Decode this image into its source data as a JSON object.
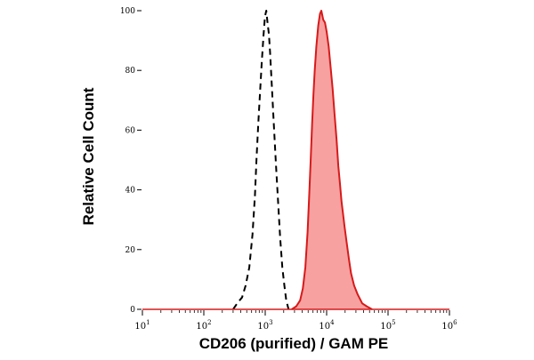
{
  "chart_data": {
    "type": "area",
    "xlabel": "CD206 (purified) / GAM PE",
    "ylabel": "Relative Cell Count",
    "x_scale": "log",
    "xlim": [
      10,
      1000000
    ],
    "ylim": [
      0,
      100
    ],
    "x_ticks": [
      {
        "value": 10,
        "base": "10",
        "exp": "1"
      },
      {
        "value": 100,
        "base": "10",
        "exp": "2"
      },
      {
        "value": 1000,
        "base": "10",
        "exp": "3"
      },
      {
        "value": 10000,
        "base": "10",
        "exp": "4"
      },
      {
        "value": 100000,
        "base": "10",
        "exp": "5"
      },
      {
        "value": 1000000,
        "base": "10",
        "exp": "6"
      }
    ],
    "y_ticks": [
      0,
      20,
      40,
      60,
      80,
      100
    ],
    "grid": false,
    "series": [
      {
        "style": "dashed-line",
        "color": "#000000",
        "points": [
          [
            300,
            0
          ],
          [
            350,
            2
          ],
          [
            420,
            4
          ],
          [
            480,
            8
          ],
          [
            550,
            14
          ],
          [
            620,
            25
          ],
          [
            680,
            38
          ],
          [
            720,
            50
          ],
          [
            770,
            62
          ],
          [
            820,
            72
          ],
          [
            880,
            83
          ],
          [
            940,
            92
          ],
          [
            990,
            98
          ],
          [
            1040,
            100
          ],
          [
            1090,
            96
          ],
          [
            1150,
            92
          ],
          [
            1200,
            86
          ],
          [
            1280,
            75
          ],
          [
            1380,
            62
          ],
          [
            1500,
            48
          ],
          [
            1620,
            36
          ],
          [
            1750,
            24
          ],
          [
            1900,
            14
          ],
          [
            2050,
            8
          ],
          [
            2200,
            3
          ],
          [
            2400,
            0
          ]
        ]
      },
      {
        "style": "filled",
        "color": "#d71a1a",
        "fill": "#f7a1a1",
        "points": [
          [
            2700,
            0
          ],
          [
            3200,
            1
          ],
          [
            3700,
            3
          ],
          [
            4100,
            7
          ],
          [
            4500,
            14
          ],
          [
            4900,
            26
          ],
          [
            5200,
            38
          ],
          [
            5500,
            50
          ],
          [
            5800,
            62
          ],
          [
            6100,
            72
          ],
          [
            6400,
            80
          ],
          [
            6800,
            88
          ],
          [
            7300,
            95
          ],
          [
            7800,
            99
          ],
          [
            8200,
            100
          ],
          [
            8800,
            97
          ],
          [
            9400,
            96
          ],
          [
            10000,
            93
          ],
          [
            10800,
            88
          ],
          [
            11500,
            82
          ],
          [
            12500,
            74
          ],
          [
            13500,
            65
          ],
          [
            14500,
            57
          ],
          [
            15500,
            48
          ],
          [
            16500,
            42
          ],
          [
            17500,
            36
          ],
          [
            18500,
            32
          ],
          [
            19500,
            28
          ],
          [
            21000,
            23
          ],
          [
            23000,
            17
          ],
          [
            25000,
            12
          ],
          [
            28000,
            8
          ],
          [
            32000,
            5
          ],
          [
            38000,
            2
          ],
          [
            45000,
            1
          ],
          [
            55000,
            0
          ]
        ]
      }
    ]
  }
}
